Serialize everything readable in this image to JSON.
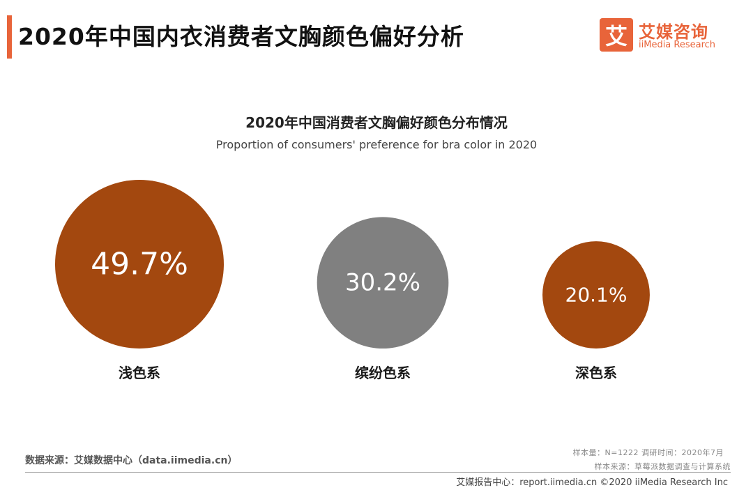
{
  "header": {
    "title": "2020年中国内衣消费者文胸颜色偏好分析",
    "accent_color": "#e8643a"
  },
  "logo": {
    "glyph": "艾",
    "name_cn": "艾媒咨询",
    "name_en": "iiMedia Research"
  },
  "chart_data": {
    "type": "bubble",
    "title": "2020年中国消费者文胸偏好颜色分布情况",
    "subtitle": "Proportion of consumers' preference for bra color in 2020",
    "categories": [
      "浅色系",
      "缤纷色系",
      "深色系"
    ],
    "values": [
      49.7,
      30.2,
      20.1
    ],
    "value_labels": [
      "49.7%",
      "30.2%",
      "20.1%"
    ],
    "colors": [
      "#a3480f",
      "#808080",
      "#a3480f"
    ],
    "unit": "%"
  },
  "footer": {
    "source_left": "数据来源：艾媒数据中心（data.iimedia.cn）",
    "sample_info": "样本量：N=1222    调研时间：2020年7月",
    "sample_source": "样本来源：草莓派数据调查与计算系统",
    "bottom_text": "艾媒报告中心：report.iimedia.cn   ©2020  iiMedia Research  Inc"
  }
}
